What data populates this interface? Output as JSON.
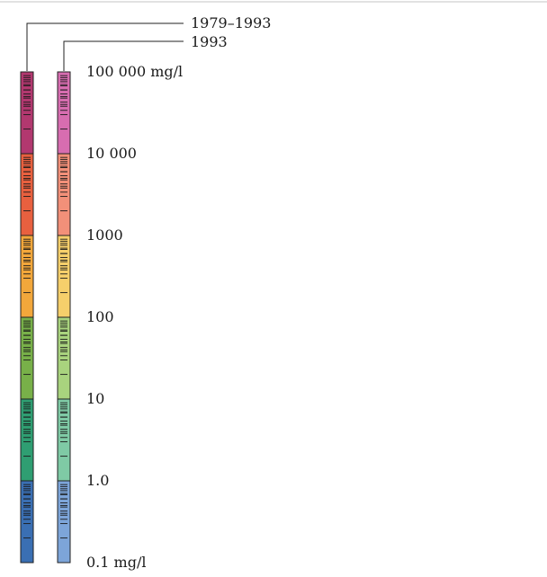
{
  "legend": {
    "series": [
      {
        "name": "1979–1993",
        "colors": [
          "#b2386f",
          "#e8603f",
          "#f2a73b",
          "#78b049",
          "#2f9e72",
          "#3a6fb3"
        ]
      },
      {
        "name": "1993",
        "colors": [
          "#d76db0",
          "#f29079",
          "#f6cf6b",
          "#a9d37e",
          "#7fcaa5",
          "#7da5d9"
        ]
      }
    ],
    "scale_labels": [
      "100 000 mg/l",
      "10 000",
      "1000",
      "100",
      "10",
      "1.0",
      "0.1 mg/l"
    ]
  }
}
